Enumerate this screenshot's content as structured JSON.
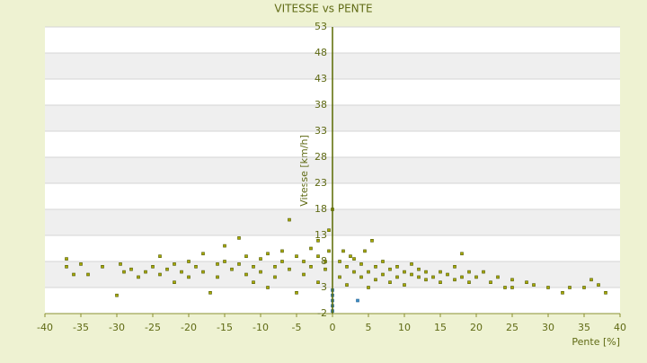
{
  "chart_data": {
    "type": "scatter",
    "title": "VITESSE vs PENTE",
    "x_label": "Pente [%]",
    "y_label": "Vitesse [km/h]",
    "xlim": [
      -40,
      40
    ],
    "xticks": [
      -40,
      -35,
      -30,
      -25,
      -20,
      -15,
      -10,
      -5,
      0,
      5,
      10,
      15,
      20,
      25,
      30,
      35,
      40
    ],
    "ylim": [
      -2,
      53
    ],
    "yticks": [
      -2,
      3,
      8,
      13,
      18,
      23,
      28,
      33,
      38,
      43,
      48,
      53
    ],
    "grid": true,
    "series": [
      {
        "color": "#a8a800",
        "x": [
          -37,
          -37,
          -36,
          -35,
          -34,
          -32,
          -30,
          -29.5,
          -29,
          -28,
          -27,
          -26,
          -25,
          -24,
          -24,
          -23,
          -22,
          -22,
          -21,
          -20,
          -20,
          -19,
          -18,
          -18,
          -17,
          -16,
          -16,
          -15,
          -15,
          -14,
          -13,
          -13,
          -12,
          -12,
          -11,
          -11,
          -10,
          -10,
          -9,
          -9,
          -8,
          -8,
          -7,
          -7,
          -6,
          -6,
          -5,
          -5,
          -4,
          -4,
          -3,
          -3,
          -2,
          -2,
          -2,
          -1,
          -1,
          -0.5,
          -0.5,
          0,
          1,
          1,
          1.5,
          2,
          2,
          2.5,
          3,
          3,
          4,
          4,
          4.5,
          5,
          5,
          5.5,
          6,
          6,
          7,
          7,
          8,
          8,
          9,
          9,
          10,
          10,
          11,
          11,
          12,
          12,
          13,
          13,
          14,
          15,
          15,
          16,
          17,
          17,
          18,
          18,
          19,
          19,
          20,
          21,
          22,
          23,
          24,
          25,
          25,
          27,
          28,
          30,
          32,
          33,
          35,
          36,
          37,
          38
        ],
        "y": [
          8.5,
          7,
          5.5,
          7.5,
          5.5,
          7,
          1.5,
          7.5,
          6,
          6.5,
          5,
          6,
          7,
          9,
          5.5,
          6.5,
          4,
          7.5,
          6,
          8,
          5,
          7,
          6,
          9.5,
          2,
          7.5,
          5,
          8,
          11,
          6.5,
          12.5,
          7.5,
          9,
          5.5,
          7,
          4,
          8.5,
          6,
          9.5,
          3,
          7,
          5,
          8,
          10,
          16,
          6.5,
          9,
          2,
          8,
          5.5,
          10.5,
          7,
          12,
          9,
          4,
          8,
          6.5,
          14,
          10,
          18,
          8,
          5,
          10,
          7,
          3.5,
          9,
          6,
          8.5,
          5,
          7.5,
          10,
          6,
          3,
          12,
          7,
          4.5,
          8,
          5.5,
          6.5,
          4,
          7,
          5,
          6,
          3.5,
          5.5,
          7.5,
          5,
          6.5,
          4.5,
          6,
          5,
          6,
          4,
          5.5,
          4.5,
          7,
          9.5,
          5,
          4,
          6,
          5,
          6,
          4,
          5,
          3,
          3,
          4.5,
          4,
          3.5,
          3,
          2,
          3,
          3,
          4.5,
          3.5,
          2
        ]
      },
      {
        "color": "#3c8fc8",
        "x": [
          0,
          0,
          0,
          0,
          0,
          3.5
        ],
        "y": [
          2.5,
          1.5,
          0.5,
          -0.5,
          -1.5,
          0.5
        ]
      }
    ]
  }
}
